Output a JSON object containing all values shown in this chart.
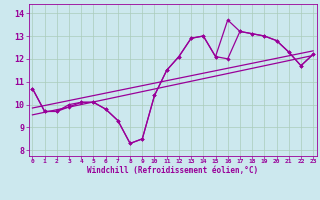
{
  "xlabel": "Windchill (Refroidissement éolien,°C)",
  "bg_color": "#cce8ee",
  "grid_color": "#aaccbb",
  "line_color": "#990099",
  "x_ticks": [
    0,
    1,
    2,
    3,
    4,
    5,
    6,
    7,
    8,
    9,
    10,
    11,
    12,
    13,
    14,
    15,
    16,
    17,
    18,
    19,
    20,
    21,
    22,
    23
  ],
  "y_ticks": [
    8,
    9,
    10,
    11,
    12,
    13,
    14
  ],
  "xlim": [
    -0.3,
    23.3
  ],
  "ylim": [
    7.75,
    14.4
  ],
  "series1_x": [
    0,
    1,
    2,
    3,
    4,
    5,
    6,
    7,
    8,
    9,
    10,
    11,
    12,
    13,
    14,
    15,
    16,
    17,
    18,
    19,
    20,
    21,
    22,
    23
  ],
  "series1_y": [
    10.7,
    9.7,
    9.7,
    9.9,
    10.1,
    10.1,
    9.8,
    9.3,
    8.3,
    8.5,
    10.4,
    11.5,
    12.1,
    12.9,
    13.0,
    12.1,
    12.0,
    13.2,
    13.1,
    13.0,
    12.8,
    12.3,
    11.7,
    12.2
  ],
  "series2_x": [
    0,
    1,
    2,
    3,
    4,
    5,
    6,
    7,
    8,
    9,
    10,
    11,
    12,
    13,
    14,
    15,
    16,
    17,
    18,
    19,
    20,
    21,
    22,
    23
  ],
  "series2_y": [
    10.7,
    9.7,
    9.7,
    10.0,
    10.1,
    10.1,
    9.8,
    9.3,
    8.3,
    8.5,
    10.4,
    11.5,
    12.1,
    12.9,
    13.0,
    12.1,
    13.7,
    13.2,
    13.1,
    13.0,
    12.8,
    12.3,
    11.7,
    12.2
  ],
  "series3_x": [
    0,
    23
  ],
  "series3_y": [
    9.55,
    12.15
  ],
  "series4_x": [
    0,
    23
  ],
  "series4_y": [
    9.85,
    12.35
  ]
}
